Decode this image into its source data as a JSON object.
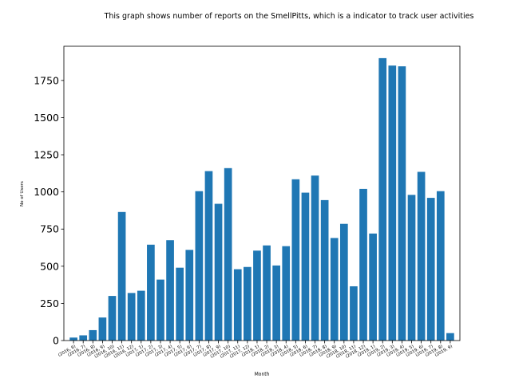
{
  "chart_data": {
    "type": "bar",
    "title": "This graph shows number of reports on the SmellPitts, which is a indicator to track user activities",
    "xlabel": "Month",
    "ylabel": "No of Users",
    "ylim": [
      0,
      1980
    ],
    "yticks": [
      0,
      250,
      500,
      750,
      1000,
      1250,
      1500,
      1750
    ],
    "grid": false,
    "legend": "none",
    "bar_color": "#1f77b4",
    "categories": [
      "(2016, 6)",
      "(2016, 7)",
      "(2016, 8)",
      "(2016, 9)",
      "(2016, 10)",
      "(2016, 11)",
      "(2016, 12)",
      "(2017, 1)",
      "(2017, 2)",
      "(2017, 3)",
      "(2017, 4)",
      "(2017, 5)",
      "(2017, 6)",
      "(2017, 7)",
      "(2017, 8)",
      "(2017, 9)",
      "(2017, 10)",
      "(2017, 11)",
      "(2017, 12)",
      "(2018, 1)",
      "(2018, 2)",
      "(2018, 3)",
      "(2018, 4)",
      "(2018, 5)",
      "(2018, 6)",
      "(2018, 7)",
      "(2018, 8)",
      "(2018, 9)",
      "(2018, 10)",
      "(2018, 11)",
      "(2018, 12)",
      "(2019, 1)",
      "(2019, 2)",
      "(2019, 3)",
      "(2019, 4)",
      "(2019, 5)",
      "(2019, 6)",
      "(2019, 7)",
      "(2019, 8)",
      "(2019, 9)"
    ],
    "values": [
      20,
      35,
      70,
      155,
      300,
      865,
      320,
      335,
      645,
      410,
      675,
      490,
      610,
      1005,
      1140,
      920,
      1160,
      480,
      495,
      605,
      640,
      505,
      635,
      1085,
      995,
      1110,
      945,
      690,
      785,
      365,
      1020,
      720,
      1900,
      1850,
      1845,
      980,
      1135,
      960,
      1005,
      50
    ]
  }
}
